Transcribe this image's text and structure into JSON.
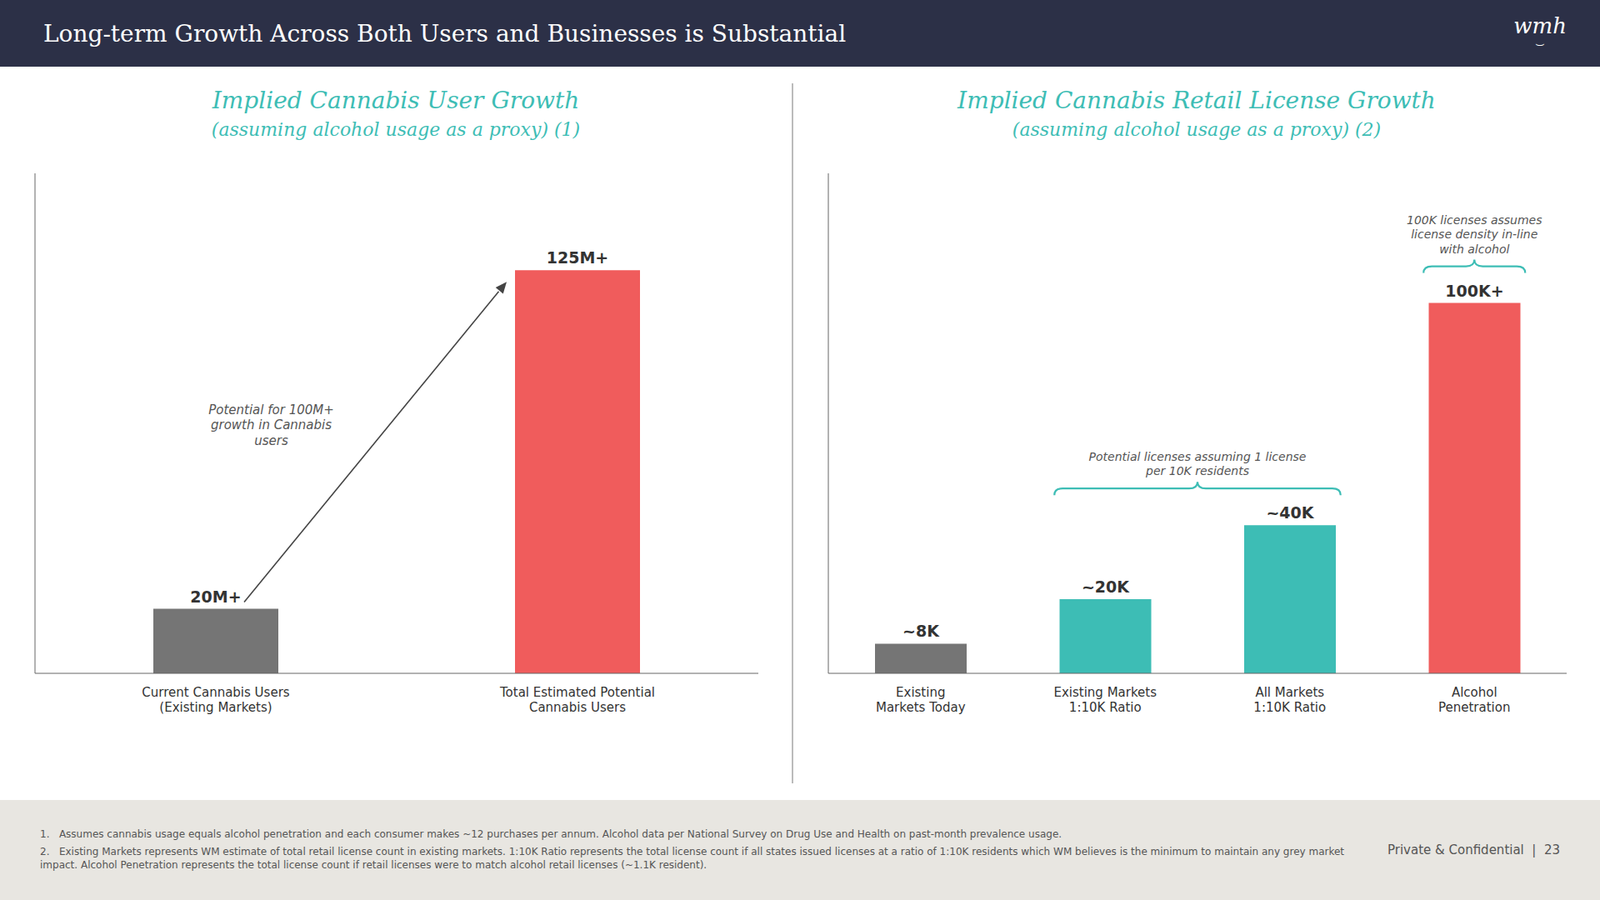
{
  "title": "Long-term Growth Across Both Users and Businesses is Substantial",
  "annotations": [
    "wmh",
    "⌣",
    "1.   Assumes cannabis usage equals alcohol penetration and each consumer makes ~12 purchases per annum. Alcohol data per National Survey on Drug Use and Health on past-month prevalence usage.",
    "2.   Existing Markets represents WM estimate of total retail license count in existing markets. 1:10K Ratio represents the total license count if all states issued licenses at a ratio of 1:10K residents which WM believes is the minimum to maintain any grey market impact. Alcohol Penetration represents the total license count if retail licenses were to match alcohol retail licenses (~1.1K resident).",
    "Private & Confidential  |  23"
  ],
  "chart_data": [
    {
      "type": "bar",
      "title": "Implied Cannabis User Growth",
      "subtitle": "(assuming alcohol usage as a proxy) (1)",
      "categories": [
        "Current Cannabis Users\n(Existing Markets)",
        "Total Estimated Potential\nCannabis Users"
      ],
      "values": [
        20,
        125
      ],
      "value_labels": [
        "20M+",
        "125M+"
      ],
      "colors": [
        "#757575",
        "#f05c5c"
      ],
      "data_labels": true,
      "ylim": [
        0,
        155
      ],
      "tick_labels": "x",
      "grid": false,
      "annotations": [
        "Potential for 100M+\ngrowth in Cannabis\nusers"
      ]
    },
    {
      "type": "bar",
      "title": "Implied Cannabis Retail License Growth",
      "subtitle": "(assuming alcohol usage as a proxy) (2)",
      "categories": [
        "Existing\nMarkets Today",
        "Existing Markets\n1:10K Ratio",
        "All Markets\n1:10K Ratio",
        "Alcohol\nPenetration"
      ],
      "values": [
        8,
        20,
        40,
        100
      ],
      "value_labels": [
        "~8K",
        "~20K",
        "~40K",
        "100K+"
      ],
      "colors": [
        "#757575",
        "#3dbdb5",
        "#3dbdb5",
        "#f05c5c"
      ],
      "data_labels": true,
      "ylim": [
        0,
        135
      ],
      "tick_labels": "x",
      "grid": false,
      "annotations": [
        "Potential licenses assuming 1 license\nper 10K residents",
        "100K licenses assumes\nlicense density in-line\nwith alcohol"
      ]
    }
  ]
}
